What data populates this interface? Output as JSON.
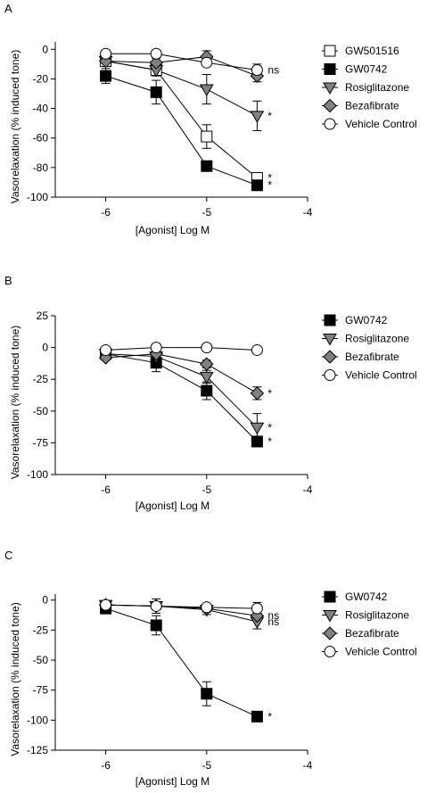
{
  "chart_data": [
    {
      "panel_label": "A",
      "type": "line",
      "xlabel": "[Agonist] Log M",
      "ylabel": "Vasorelaxation (% induced tone)",
      "xlim": [
        -6.5,
        -4
      ],
      "ylim": [
        -100,
        5
      ],
      "xticks": [
        -6,
        -5,
        -4
      ],
      "yticks": [
        0,
        -20,
        -40,
        -60,
        -80,
        -100
      ],
      "x": [
        -6,
        -5.5,
        -5,
        -4.5
      ],
      "legend_position": "right",
      "series": [
        {
          "name": "GW501516",
          "marker": "square",
          "fill": "#ffffff",
          "values": [
            -8,
            -14,
            -59,
            -87
          ],
          "errors": [
            3,
            4,
            8,
            2
          ],
          "end_label": "*"
        },
        {
          "name": "GW0742",
          "marker": "square",
          "fill": "#000000",
          "values": [
            -18,
            -29,
            -79,
            -92
          ],
          "errors": [
            5,
            8,
            2,
            2
          ],
          "end_label": "*"
        },
        {
          "name": "Rosiglitazone",
          "marker": "triangle-down",
          "fill": "#808080",
          "values": [
            -8,
            -14,
            -27,
            -45
          ],
          "errors": [
            3,
            3,
            10,
            10
          ],
          "end_label": "*"
        },
        {
          "name": "Bezafibrate",
          "marker": "diamond",
          "fill": "#808080",
          "values": [
            -8,
            -9,
            -5,
            -18
          ],
          "errors": [
            3,
            3,
            4,
            4
          ],
          "end_label": ""
        },
        {
          "name": "Vehicle Control",
          "marker": "circle",
          "fill": "#ffffff",
          "values": [
            -3,
            -3,
            -9,
            -14
          ],
          "errors": [
            2,
            2,
            2,
            4
          ],
          "end_label": "ns"
        }
      ]
    },
    {
      "panel_label": "B",
      "type": "line",
      "xlabel": "[Agonist] Log M",
      "ylabel": "Vasorelaxation (% induced tone)",
      "xlim": [
        -6.5,
        -4
      ],
      "ylim": [
        -100,
        25
      ],
      "xticks": [
        -6,
        -5,
        -4
      ],
      "yticks": [
        25,
        0,
        -25,
        -50,
        -75,
        -100
      ],
      "x": [
        -6,
        -5.5,
        -5,
        -4.5
      ],
      "legend_position": "right",
      "series": [
        {
          "name": "GW0742",
          "marker": "square",
          "fill": "#000000",
          "values": [
            -5,
            -12,
            -34,
            -74
          ],
          "errors": [
            2,
            7,
            7,
            4
          ],
          "end_label": "*"
        },
        {
          "name": "Rosiglitazone",
          "marker": "triangle-down",
          "fill": "#808080",
          "values": [
            -5,
            -7,
            -23,
            -63
          ],
          "errors": [
            2,
            3,
            5,
            11
          ],
          "end_label": "*"
        },
        {
          "name": "Bezafibrate",
          "marker": "diamond",
          "fill": "#808080",
          "values": [
            -8,
            -5,
            -13,
            -36
          ],
          "errors": [
            2,
            2,
            3,
            5
          ],
          "end_label": "*"
        },
        {
          "name": "Vehicle Control",
          "marker": "circle",
          "fill": "#ffffff",
          "values": [
            -2,
            0,
            0,
            -2
          ],
          "errors": [
            1,
            1,
            1,
            1
          ],
          "end_label": ""
        }
      ]
    },
    {
      "panel_label": "C",
      "type": "line",
      "xlabel": "[Agonist] Log M",
      "ylabel": "Vasorelaxation (% induced tone)",
      "xlim": [
        -6.5,
        -4
      ],
      "ylim": [
        -125,
        5
      ],
      "xticks": [
        -6,
        -5,
        -4
      ],
      "yticks": [
        0,
        -25,
        -50,
        -75,
        -100,
        -125
      ],
      "x": [
        -6,
        -5.5,
        -5,
        -4.5
      ],
      "legend_position": "right",
      "series": [
        {
          "name": "GW0742",
          "marker": "square",
          "fill": "#000000",
          "values": [
            -7,
            -21,
            -78,
            -97
          ],
          "errors": [
            2,
            8,
            10,
            2
          ],
          "end_label": "*"
        },
        {
          "name": "Rosiglitazone",
          "marker": "triangle-down",
          "fill": "#808080",
          "values": [
            -4,
            -5,
            -8,
            -18
          ],
          "errors": [
            2,
            6,
            4,
            6
          ],
          "end_label": "ns"
        },
        {
          "name": "Bezafibrate",
          "marker": "diamond",
          "fill": "#808080",
          "values": [
            -4,
            -5,
            -7,
            -13
          ],
          "errors": [
            2,
            3,
            3,
            4
          ],
          "end_label": "ns"
        },
        {
          "name": "Vehicle Control",
          "marker": "circle",
          "fill": "#ffffff",
          "values": [
            -4,
            -5,
            -6,
            -7
          ],
          "errors": [
            2,
            2,
            2,
            5
          ],
          "end_label": ""
        }
      ]
    }
  ]
}
